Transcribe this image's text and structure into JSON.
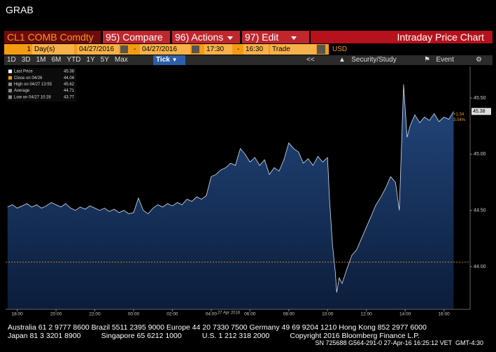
{
  "window_title": "GRAB",
  "toolbar": {
    "security": "CL1 COMB Comdty",
    "compare": "95) Compare",
    "actions": "96) Actions",
    "edit": "97) Edit",
    "screen_title": "Intraday Price Chart"
  },
  "range_bar": {
    "count": "1",
    "unit": "Day(s)",
    "start_date": "04/27/2016",
    "separator": "-",
    "end_date": "04/27/2016",
    "start_time": "17:30",
    "end_time": "16:30",
    "field": "Trade",
    "currency": "USD"
  },
  "period_bar": {
    "periods": [
      "1D",
      "3D",
      "1M",
      "6M",
      "YTD",
      "1Y",
      "5Y",
      "Max"
    ],
    "frequency": "Tick",
    "back": "<<",
    "study": "Security/Study",
    "event": "Event"
  },
  "chart_data": {
    "type": "area",
    "date_label": "27 Apr 2016",
    "x": [
      17.5,
      17.75,
      18,
      18.25,
      18.5,
      18.75,
      19,
      19.25,
      19.5,
      19.75,
      20,
      20.25,
      20.5,
      20.75,
      21,
      21.25,
      21.5,
      21.75,
      22,
      22.25,
      22.5,
      22.75,
      23,
      23.25,
      23.5,
      23.75,
      24,
      24.25,
      24.5,
      24.75,
      25,
      25.25,
      25.5,
      25.75,
      26,
      26.25,
      26.5,
      26.75,
      27,
      27.25,
      27.5,
      27.75,
      28,
      28.25,
      28.5,
      28.75,
      29,
      29.25,
      29.5,
      29.75,
      30,
      30.25,
      30.5,
      30.75,
      31,
      31.25,
      31.5,
      31.75,
      32,
      32.25,
      32.5,
      32.75,
      33,
      33.25,
      33.5,
      33.75,
      34,
      34.1,
      34.25,
      34.4,
      34.47,
      34.6,
      34.75,
      35,
      35.25,
      35.5,
      35.75,
      36,
      36.25,
      36.5,
      36.75,
      37,
      37.25,
      37.5,
      37.7,
      37.92,
      38.1,
      38.25,
      38.5,
      38.75,
      39,
      39.25,
      39.5,
      39.75,
      40,
      40.25,
      40.5
    ],
    "series": [
      {
        "name": "Last Price",
        "color": "#d6e2f5",
        "values": [
          44.53,
          44.55,
          44.52,
          44.54,
          44.56,
          44.53,
          44.55,
          44.52,
          44.54,
          44.57,
          44.55,
          44.53,
          44.56,
          44.52,
          44.5,
          44.53,
          44.51,
          44.54,
          44.52,
          44.5,
          44.52,
          44.49,
          44.51,
          44.48,
          44.5,
          44.47,
          44.48,
          44.61,
          44.5,
          44.47,
          44.52,
          44.55,
          44.53,
          44.56,
          44.54,
          44.57,
          44.55,
          44.6,
          44.58,
          44.62,
          44.6,
          44.63,
          44.8,
          44.82,
          44.86,
          44.88,
          44.92,
          44.9,
          45.05,
          45.0,
          44.93,
          44.97,
          44.9,
          44.95,
          44.82,
          44.88,
          44.85,
          44.95,
          45.1,
          45.05,
          45.02,
          44.92,
          44.96,
          44.9,
          44.98,
          44.93,
          44.97,
          44.6,
          44.2,
          43.95,
          43.77,
          43.9,
          43.85,
          43.98,
          44.1,
          44.15,
          44.25,
          44.35,
          44.45,
          44.55,
          44.62,
          44.7,
          44.8,
          44.75,
          44.5,
          45.62,
          45.15,
          45.25,
          45.35,
          45.28,
          45.33,
          45.3,
          45.36,
          45.29,
          45.33,
          45.31,
          45.38
        ]
      }
    ],
    "legend": [
      {
        "label": "Last Price",
        "value": 45.38,
        "color": "#ffffff"
      },
      {
        "label": "Close on 04/26",
        "value": 44.04,
        "color": "#f39c12"
      },
      {
        "label": "High on 04/27 13:55",
        "value": 45.62,
        "color": "#888888"
      },
      {
        "label": "Average",
        "value": 44.71,
        "color": "#888888"
      },
      {
        "label": "Low on 04/27 10:28",
        "value": 43.77,
        "color": "#888888"
      }
    ],
    "change_tags": [
      "+1.34",
      "3.04%"
    ],
    "xlim": [
      17.4,
      41.35
    ],
    "xticks": [
      {
        "value": 18,
        "label": "18:00"
      },
      {
        "value": 20,
        "label": "20:00"
      },
      {
        "value": 22,
        "label": "22:00"
      },
      {
        "value": 24,
        "label": "00:00"
      },
      {
        "value": 26,
        "label": "02:00"
      },
      {
        "value": 28,
        "label": "04:00"
      },
      {
        "value": 30,
        "label": "06:00"
      },
      {
        "value": 32,
        "label": "08:00"
      },
      {
        "value": 34,
        "label": "10:00"
      },
      {
        "value": 36,
        "label": "12:00"
      },
      {
        "value": 38,
        "label": "14:00"
      },
      {
        "value": 40,
        "label": "16:00"
      }
    ],
    "ylim": [
      43.62,
      45.78
    ],
    "yticks": [
      {
        "value": 44,
        "label": "44.00"
      },
      {
        "value": 44.5,
        "label": "44.50"
      },
      {
        "value": 45,
        "label": "45.00"
      },
      {
        "value": 45.5,
        "label": "45.50"
      }
    ]
  },
  "footer": {
    "line1": "Australia 61 2 9777 8600 Brazil 5511 2395 9000 Europe 44 20 7330 7500 Germany 49 69 9204 1210 Hong Kong 852 2977 6000",
    "line2": "Japan 81 3 3201 8900          Singapore 65 6212 1000          U.S. 1 212 318 2000          Copyright 2016 Bloomberg Finance L.P.",
    "line3": "SN 725688 G564-291-0 27-Apr-16 16:25:12 VET  GMT-4:30"
  }
}
